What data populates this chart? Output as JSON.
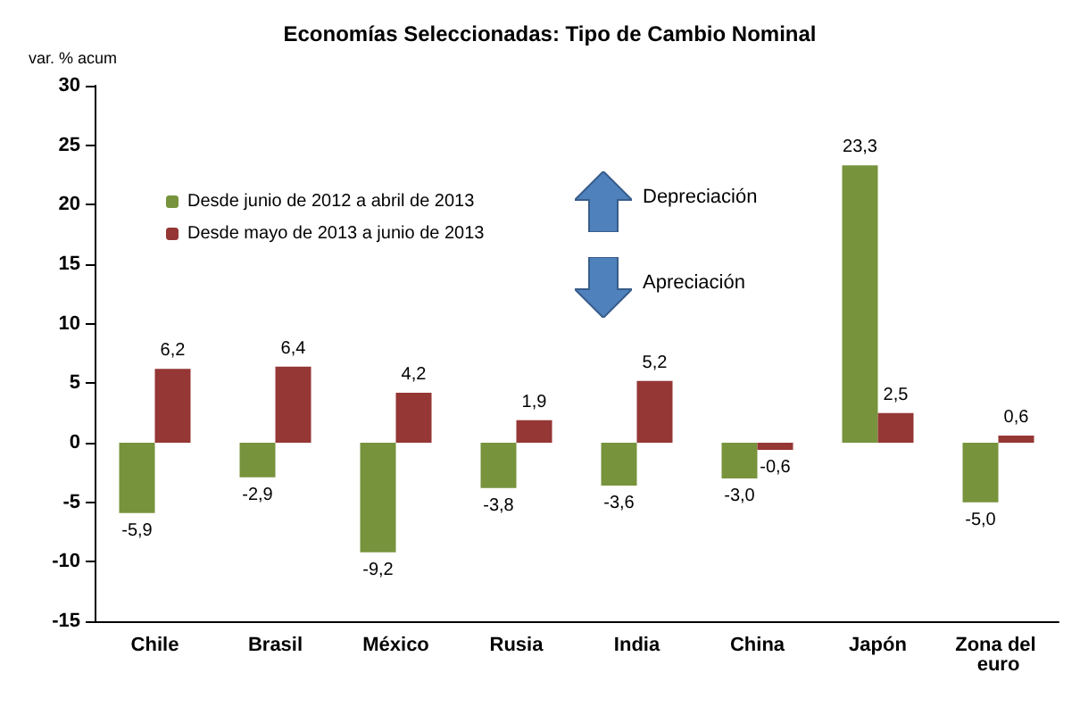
{
  "chart_data": {
    "type": "bar",
    "title": "Economías Seleccionadas: Tipo de Cambio Nominal",
    "ylabel": "var. % acum",
    "categories": [
      "Chile",
      "Brasil",
      "México",
      "Rusia",
      "India",
      "China",
      "Japón",
      "Zona del euro"
    ],
    "series": [
      {
        "name": "Desde junio de 2012 a abril de 2013",
        "color": "#77933c",
        "values": [
          -5.9,
          -2.9,
          -9.2,
          -3.8,
          -3.6,
          -3.0,
          23.3,
          -5.0
        ],
        "value_labels": [
          "-5,9",
          "-2,9",
          "-9,2",
          "-3,8",
          "-3,6",
          "-3,0",
          "23,3",
          "-5,0"
        ]
      },
      {
        "name": "Desde mayo de 2013 a junio de 2013",
        "color": "#953735",
        "values": [
          6.2,
          6.4,
          4.2,
          1.9,
          5.2,
          -0.6,
          2.5,
          0.6
        ],
        "value_labels": [
          "6,2",
          "6,4",
          "4,2",
          "1,9",
          "5,2",
          "-0,6",
          "2,5",
          "0,6"
        ]
      }
    ],
    "ylim": [
      -15,
      30
    ],
    "yticks": [
      -15,
      -10,
      -5,
      0,
      5,
      10,
      15,
      20,
      25,
      30
    ],
    "grid": false,
    "legend": "top left",
    "annotations": [
      "Depreciación",
      "Apreciación"
    ]
  }
}
